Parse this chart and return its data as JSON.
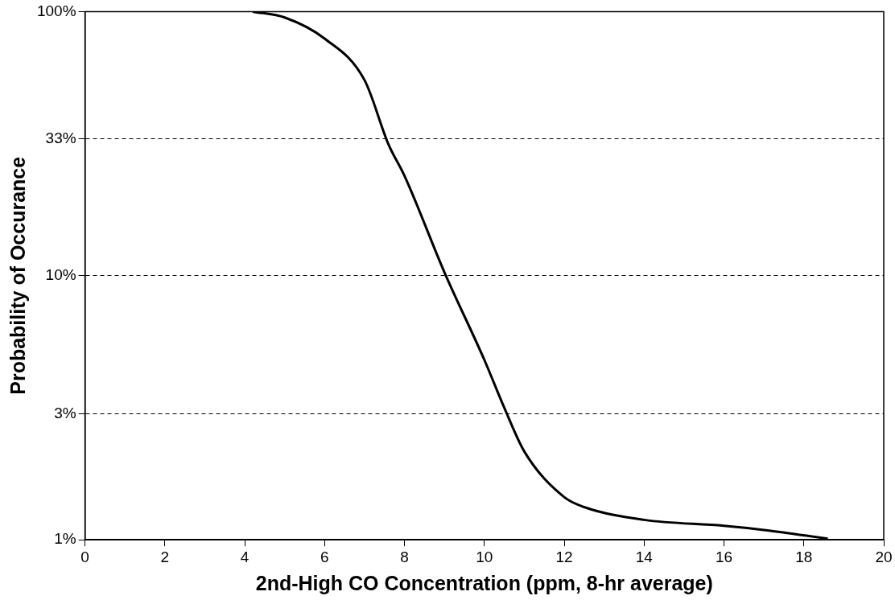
{
  "chart_data": {
    "type": "line",
    "xlabel": "2nd-High CO Concentration (ppm, 8-hr average)",
    "ylabel": "Probability of Occurance",
    "x": [
      4.2,
      5,
      6,
      7,
      7.6,
      8,
      9,
      10,
      10.5,
      11,
      12,
      12.5,
      14,
      16,
      17,
      18.6
    ],
    "series": [
      {
        "color": "#000000",
        "values": [
          100,
          95,
          79,
          55,
          31.4,
          23.9,
          10.3,
          4.8,
          3.16,
          2.16,
          1.45,
          1.33,
          1.19,
          1.13,
          1.09,
          1.01
        ]
      }
    ],
    "xlim": [
      0,
      20
    ],
    "xticks": [
      0,
      2,
      4,
      6,
      8,
      10,
      12,
      14,
      16,
      18,
      20
    ],
    "ylim": [
      1,
      100
    ],
    "yticks": [
      {
        "value": 1,
        "label": "1%"
      },
      {
        "value": 3,
        "label": "3%"
      },
      {
        "value": 10,
        "label": "10%"
      },
      {
        "value": 33,
        "label": "33%"
      },
      {
        "value": 100,
        "label": "100%"
      }
    ],
    "log": "y",
    "grid": "y",
    "legend": false,
    "marker": "none",
    "line_style": "solid"
  }
}
